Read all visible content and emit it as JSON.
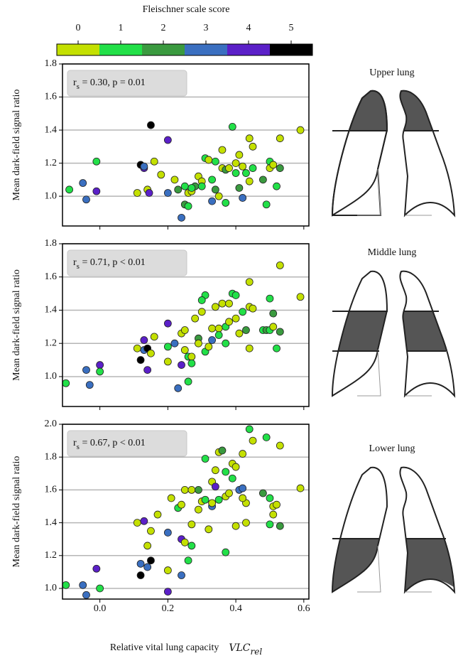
{
  "colorbar": {
    "title": "Fleischner scale score",
    "ticks": [
      0,
      1,
      2,
      3,
      4,
      5
    ],
    "colors": [
      "#c4e000",
      "#22e048",
      "#3a9a3f",
      "#3a6fc0",
      "#5b20c8",
      "#000000"
    ]
  },
  "chart_data": [
    {
      "type": "scatter",
      "ylabel": "Mean dark-field signal ratio",
      "region_label": "Upper lung",
      "annotation": [
        "r",
        "s",
        " = 0.30, p = 0.01"
      ],
      "xlim": [
        -0.11,
        0.615
      ],
      "ylim": [
        0.82,
        1.8
      ],
      "yticks": [
        {
          "value": 1,
          "label": "1.0"
        },
        1.2,
        1.4,
        1.6,
        1.8
      ],
      "grid": true,
      "x": [
        -0.09,
        -0.05,
        -0.04,
        -0.01,
        -0.01,
        0.11,
        0.12,
        0.13,
        0.13,
        0.14,
        0.145,
        0.15,
        0.16,
        0.18,
        0.2,
        0.2,
        0.22,
        0.23,
        0.24,
        0.25,
        0.25,
        0.26,
        0.26,
        0.27,
        0.28,
        0.29,
        0.3,
        0.31,
        0.32,
        0.33,
        0.33,
        0.34,
        0.35,
        0.36,
        0.36,
        0.37,
        0.37,
        0.38,
        0.39,
        0.4,
        0.4,
        0.41,
        0.41,
        0.42,
        0.43,
        0.44,
        0.44,
        0.45,
        0.45,
        0.42,
        0.48,
        0.49,
        0.5,
        0.5,
        0.51,
        0.52,
        0.53,
        0.53,
        0.59,
        0.3,
        0.34,
        0.27
      ],
      "values": [
        1.04,
        1.08,
        0.98,
        1.21,
        1.03,
        1.02,
        1.19,
        1.17,
        1.18,
        1.04,
        1.02,
        1.43,
        1.21,
        1.13,
        1.34,
        1.02,
        1.1,
        1.04,
        0.87,
        1.06,
        0.95,
        0.94,
        1.02,
        1.03,
        1.06,
        1.12,
        1.09,
        1.23,
        1.22,
        1.1,
        0.97,
        1.21,
        1.0,
        1.28,
        1.17,
        1.16,
        0.96,
        1.17,
        1.42,
        1.14,
        1.2,
        1.25,
        1.05,
        1.18,
        1.14,
        1.35,
        1.09,
        1.3,
        1.17,
        0.99,
        1.1,
        0.95,
        1.21,
        1.17,
        1.19,
        1.06,
        1.17,
        1.35,
        1.4,
        1.06,
        1.04,
        1.05
      ],
      "scores": [
        1,
        3,
        3,
        1,
        4,
        0,
        5,
        4,
        3,
        0,
        4,
        5,
        0,
        0,
        4,
        3,
        0,
        2,
        3,
        1,
        2,
        1,
        0,
        0,
        2,
        0,
        0,
        1,
        0,
        1,
        3,
        1,
        0,
        0,
        0,
        2,
        1,
        0,
        1,
        1,
        0,
        0,
        2,
        0,
        1,
        0,
        0,
        0,
        1,
        3,
        2,
        1,
        1,
        0,
        0,
        1,
        2,
        0,
        0,
        1,
        2,
        1
      ]
    },
    {
      "type": "scatter",
      "ylabel": "Mean dark-field signal ratio",
      "region_label": "Middle lung",
      "annotation": [
        "r",
        "s",
        " = 0.71, p < 0.01"
      ],
      "xlim": [
        -0.11,
        0.615
      ],
      "ylim": [
        0.82,
        1.8
      ],
      "yticks": [
        {
          "value": 1,
          "label": "1.0"
        },
        1.2,
        1.4,
        1.6,
        1.8
      ],
      "grid": true,
      "x": [
        -0.1,
        -0.04,
        -0.03,
        0.0,
        0.0,
        0.11,
        0.12,
        0.13,
        0.13,
        0.14,
        0.14,
        0.15,
        0.16,
        0.2,
        0.2,
        0.2,
        0.22,
        0.23,
        0.24,
        0.24,
        0.25,
        0.25,
        0.26,
        0.26,
        0.27,
        0.27,
        0.28,
        0.29,
        0.29,
        0.3,
        0.31,
        0.31,
        0.32,
        0.33,
        0.33,
        0.34,
        0.35,
        0.35,
        0.36,
        0.37,
        0.37,
        0.38,
        0.38,
        0.39,
        0.4,
        0.4,
        0.41,
        0.42,
        0.43,
        0.44,
        0.44,
        0.44,
        0.45,
        0.48,
        0.49,
        0.5,
        0.5,
        0.51,
        0.51,
        0.52,
        0.53,
        0.53,
        0.59,
        0.3
      ],
      "values": [
        0.96,
        1.04,
        0.95,
        1.07,
        1.03,
        1.17,
        1.1,
        1.22,
        1.16,
        1.04,
        1.17,
        1.14,
        1.24,
        1.32,
        1.18,
        1.09,
        1.2,
        0.93,
        1.07,
        1.26,
        1.28,
        1.16,
        1.12,
        0.97,
        1.12,
        1.08,
        1.35,
        1.23,
        1.2,
        1.39,
        1.49,
        1.15,
        1.18,
        1.29,
        1.22,
        1.42,
        1.29,
        1.25,
        1.44,
        1.3,
        1.2,
        1.44,
        1.33,
        1.5,
        1.35,
        1.49,
        1.26,
        1.39,
        1.28,
        1.57,
        1.42,
        1.17,
        1.41,
        1.28,
        1.28,
        1.47,
        1.28,
        1.38,
        1.3,
        1.17,
        1.27,
        1.67,
        1.48,
        1.46
      ],
      "scores": [
        1,
        3,
        3,
        4,
        1,
        0,
        5,
        4,
        3,
        4,
        5,
        0,
        0,
        4,
        1,
        0,
        3,
        3,
        4,
        0,
        0,
        0,
        1,
        1,
        0,
        1,
        0,
        2,
        0,
        0,
        1,
        1,
        0,
        0,
        3,
        0,
        0,
        1,
        0,
        1,
        1,
        0,
        0,
        1,
        0,
        1,
        0,
        1,
        2,
        0,
        0,
        0,
        0,
        1,
        2,
        1,
        1,
        2,
        0,
        1,
        2,
        0,
        0,
        1
      ]
    },
    {
      "type": "scatter",
      "ylabel": "Mean dark-field signal ratio",
      "region_label": "Lower lung",
      "annotation": [
        "r",
        "s",
        " = 0.67, p < 0.01"
      ],
      "xlabel": "Relative vital lung capacity",
      "xlabel_math": [
        "VLC",
        "rel"
      ],
      "xlim": [
        -0.11,
        0.615
      ],
      "ylim": [
        0.935,
        2.0
      ],
      "xticks": [
        {
          "value": 0,
          "label": "0.0"
        },
        0.2,
        0.4,
        0.6
      ],
      "yticks": [
        {
          "value": 1,
          "label": "1.0"
        },
        1.2,
        1.4,
        1.6,
        1.8,
        {
          "value": 2,
          "label": "2.0"
        }
      ],
      "grid": true,
      "x": [
        -0.1,
        -0.05,
        -0.04,
        -0.01,
        0.0,
        0.11,
        0.12,
        0.13,
        0.12,
        0.14,
        0.14,
        0.15,
        0.15,
        0.17,
        0.2,
        0.2,
        0.2,
        0.21,
        0.23,
        0.24,
        0.24,
        0.24,
        0.25,
        0.25,
        0.26,
        0.27,
        0.27,
        0.27,
        0.29,
        0.29,
        0.3,
        0.31,
        0.31,
        0.32,
        0.33,
        0.33,
        0.33,
        0.34,
        0.34,
        0.35,
        0.35,
        0.36,
        0.37,
        0.37,
        0.37,
        0.38,
        0.39,
        0.39,
        0.4,
        0.4,
        0.41,
        0.42,
        0.42,
        0.43,
        0.43,
        0.44,
        0.45,
        0.48,
        0.49,
        0.5,
        0.5,
        0.51,
        0.51,
        0.52,
        0.53,
        0.53,
        0.59,
        0.42
      ],
      "values": [
        1.02,
        1.02,
        0.96,
        1.12,
        1.0,
        1.4,
        1.08,
        1.41,
        1.15,
        1.26,
        1.13,
        1.17,
        1.35,
        1.45,
        1.11,
        0.98,
        1.34,
        1.55,
        1.49,
        1.3,
        1.51,
        1.08,
        1.6,
        1.28,
        1.17,
        1.39,
        1.6,
        1.26,
        1.48,
        1.6,
        1.53,
        1.54,
        1.79,
        1.36,
        1.65,
        1.5,
        1.52,
        1.62,
        1.72,
        1.83,
        1.54,
        1.84,
        1.71,
        1.22,
        1.56,
        1.58,
        1.76,
        1.67,
        1.74,
        1.38,
        1.6,
        1.61,
        1.82,
        1.4,
        1.52,
        1.97,
        1.9,
        1.58,
        1.92,
        1.55,
        1.39,
        1.5,
        1.45,
        1.51,
        1.38,
        1.87,
        1.61,
        1.55
      ],
      "scores": [
        1,
        3,
        3,
        4,
        1,
        0,
        5,
        4,
        3,
        0,
        3,
        5,
        0,
        0,
        0,
        4,
        3,
        0,
        1,
        4,
        0,
        3,
        0,
        0,
        1,
        0,
        0,
        1,
        0,
        2,
        0,
        1,
        1,
        0,
        0,
        3,
        0,
        4,
        0,
        0,
        1,
        2,
        1,
        1,
        0,
        0,
        0,
        1,
        0,
        0,
        3,
        3,
        0,
        0,
        0,
        1,
        0,
        2,
        1,
        1,
        1,
        0,
        0,
        0,
        2,
        0,
        0,
        0
      ]
    }
  ]
}
